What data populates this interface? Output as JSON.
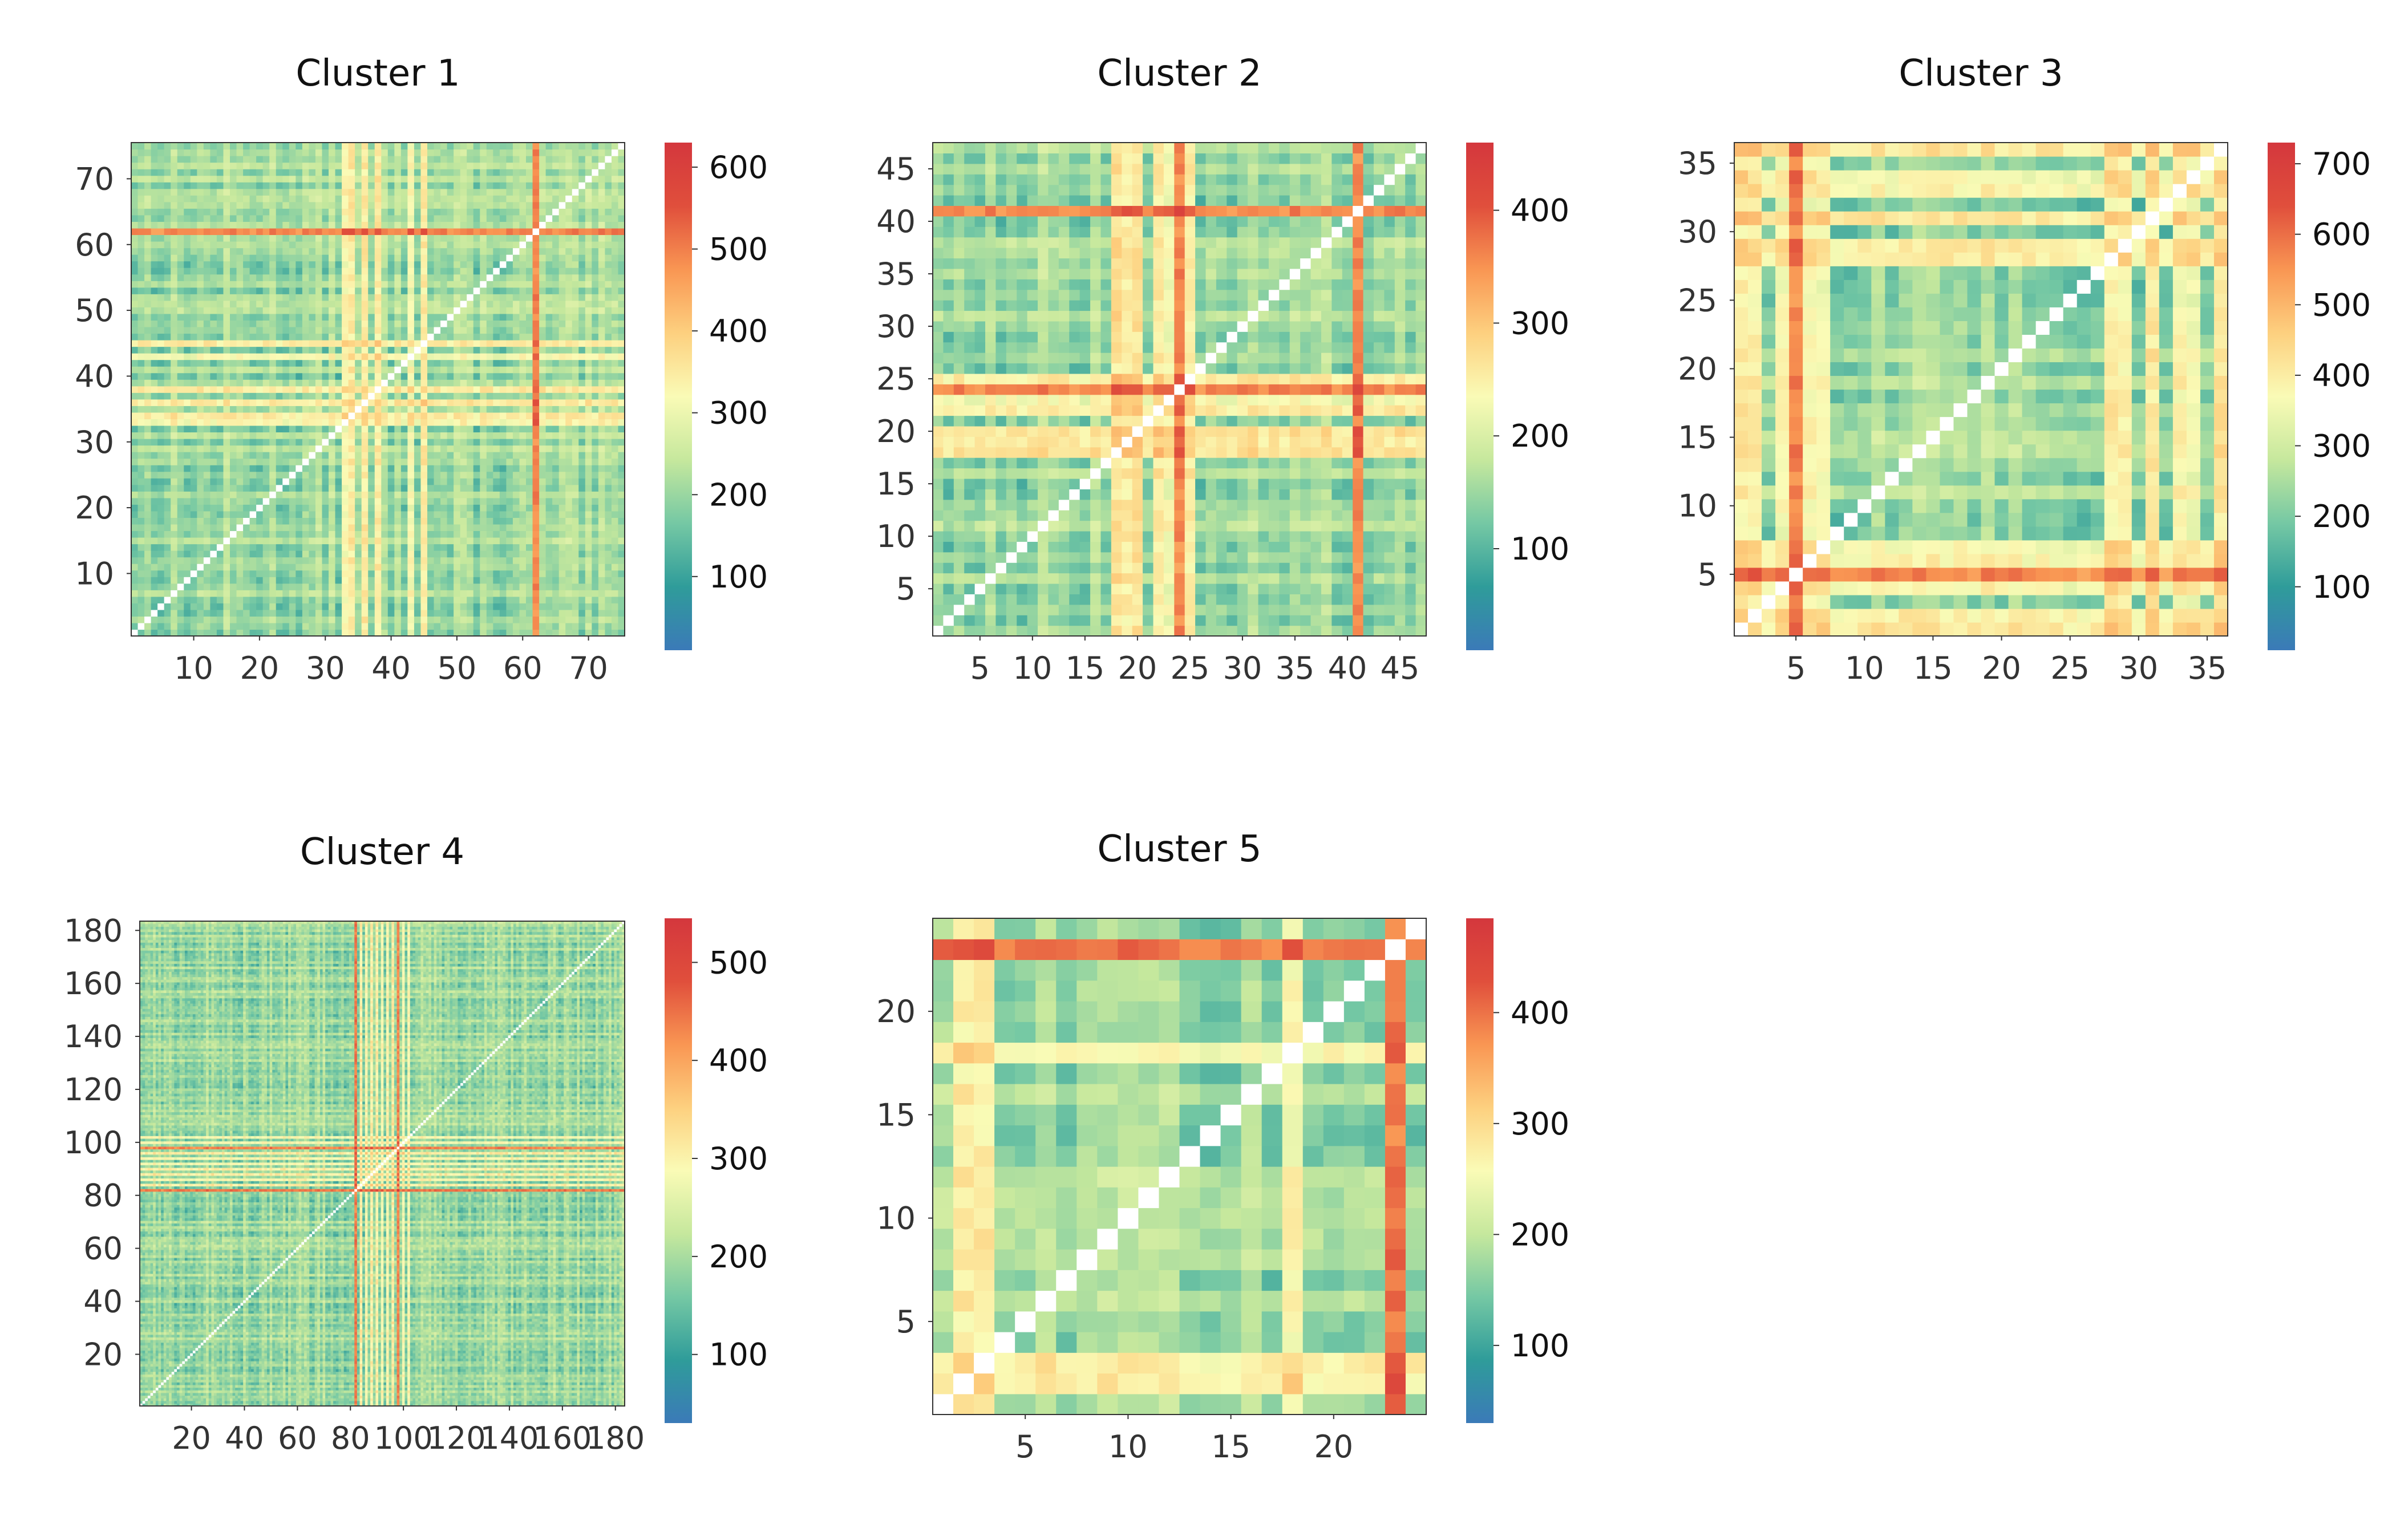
{
  "figure": {
    "colormap": [
      "#3b7ab8",
      "#2f9c9a",
      "#75c8a4",
      "#c6e89d",
      "#fafbb6",
      "#fdd07f",
      "#f99653",
      "#e04f3c",
      "#d4373d"
    ],
    "diagonal_color": "#ffffff"
  },
  "chart_data": [
    {
      "type": "heatmap",
      "title": "Cluster 1",
      "n": 75,
      "x_ticks": [
        10,
        20,
        30,
        40,
        50,
        60,
        70
      ],
      "y_ticks": [
        10,
        20,
        30,
        40,
        50,
        60,
        70
      ],
      "colorbar_ticks": [
        100,
        200,
        300,
        400,
        500,
        600
      ],
      "vmin": 10,
      "vmax": 630,
      "hot_rows": [
        62
      ],
      "warm_rows": [
        33,
        34,
        36,
        38,
        43,
        45
      ]
    },
    {
      "type": "heatmap",
      "title": "Cluster 2",
      "n": 47,
      "x_ticks": [
        5,
        10,
        15,
        20,
        25,
        30,
        35,
        40,
        45
      ],
      "y_ticks": [
        5,
        10,
        15,
        20,
        25,
        30,
        35,
        40,
        45
      ],
      "colorbar_ticks": [
        100,
        200,
        300,
        400
      ],
      "vmin": 10,
      "vmax": 460,
      "hot_rows": [
        24,
        41
      ],
      "warm_rows": [
        18,
        19,
        20,
        22,
        23,
        25
      ]
    },
    {
      "type": "heatmap",
      "title": "Cluster 3",
      "n": 36,
      "x_ticks": [
        5,
        10,
        15,
        20,
        25,
        30,
        35
      ],
      "y_ticks": [
        5,
        10,
        15,
        20,
        25,
        30,
        35
      ],
      "colorbar_ticks": [
        100,
        200,
        300,
        400,
        500,
        600,
        700
      ],
      "vmin": 10,
      "vmax": 730,
      "hot_rows": [
        5
      ],
      "warm_rows": [
        1,
        2,
        4,
        6,
        7,
        28,
        29,
        31,
        33,
        34,
        36
      ]
    },
    {
      "type": "heatmap",
      "title": "Cluster 4",
      "n": 183,
      "x_ticks": [
        20,
        40,
        60,
        80,
        100,
        120,
        140,
        160,
        180
      ],
      "y_ticks": [
        20,
        40,
        60,
        80,
        100,
        120,
        140,
        160,
        180
      ],
      "colorbar_ticks": [
        100,
        200,
        300,
        400,
        500
      ],
      "vmin": 30,
      "vmax": 545,
      "hot_rows": [
        82,
        98
      ],
      "warm_rows": [
        84,
        86,
        88,
        90,
        92,
        94,
        96,
        100,
        102
      ]
    },
    {
      "type": "heatmap",
      "title": "Cluster 5",
      "n": 24,
      "x_ticks": [
        5,
        10,
        15,
        20
      ],
      "y_ticks": [
        5,
        10,
        15,
        20
      ],
      "colorbar_ticks": [
        100,
        200,
        300,
        400
      ],
      "vmin": 30,
      "vmax": 485,
      "hot_rows": [
        23
      ],
      "warm_rows": [
        2,
        3,
        18
      ]
    }
  ]
}
